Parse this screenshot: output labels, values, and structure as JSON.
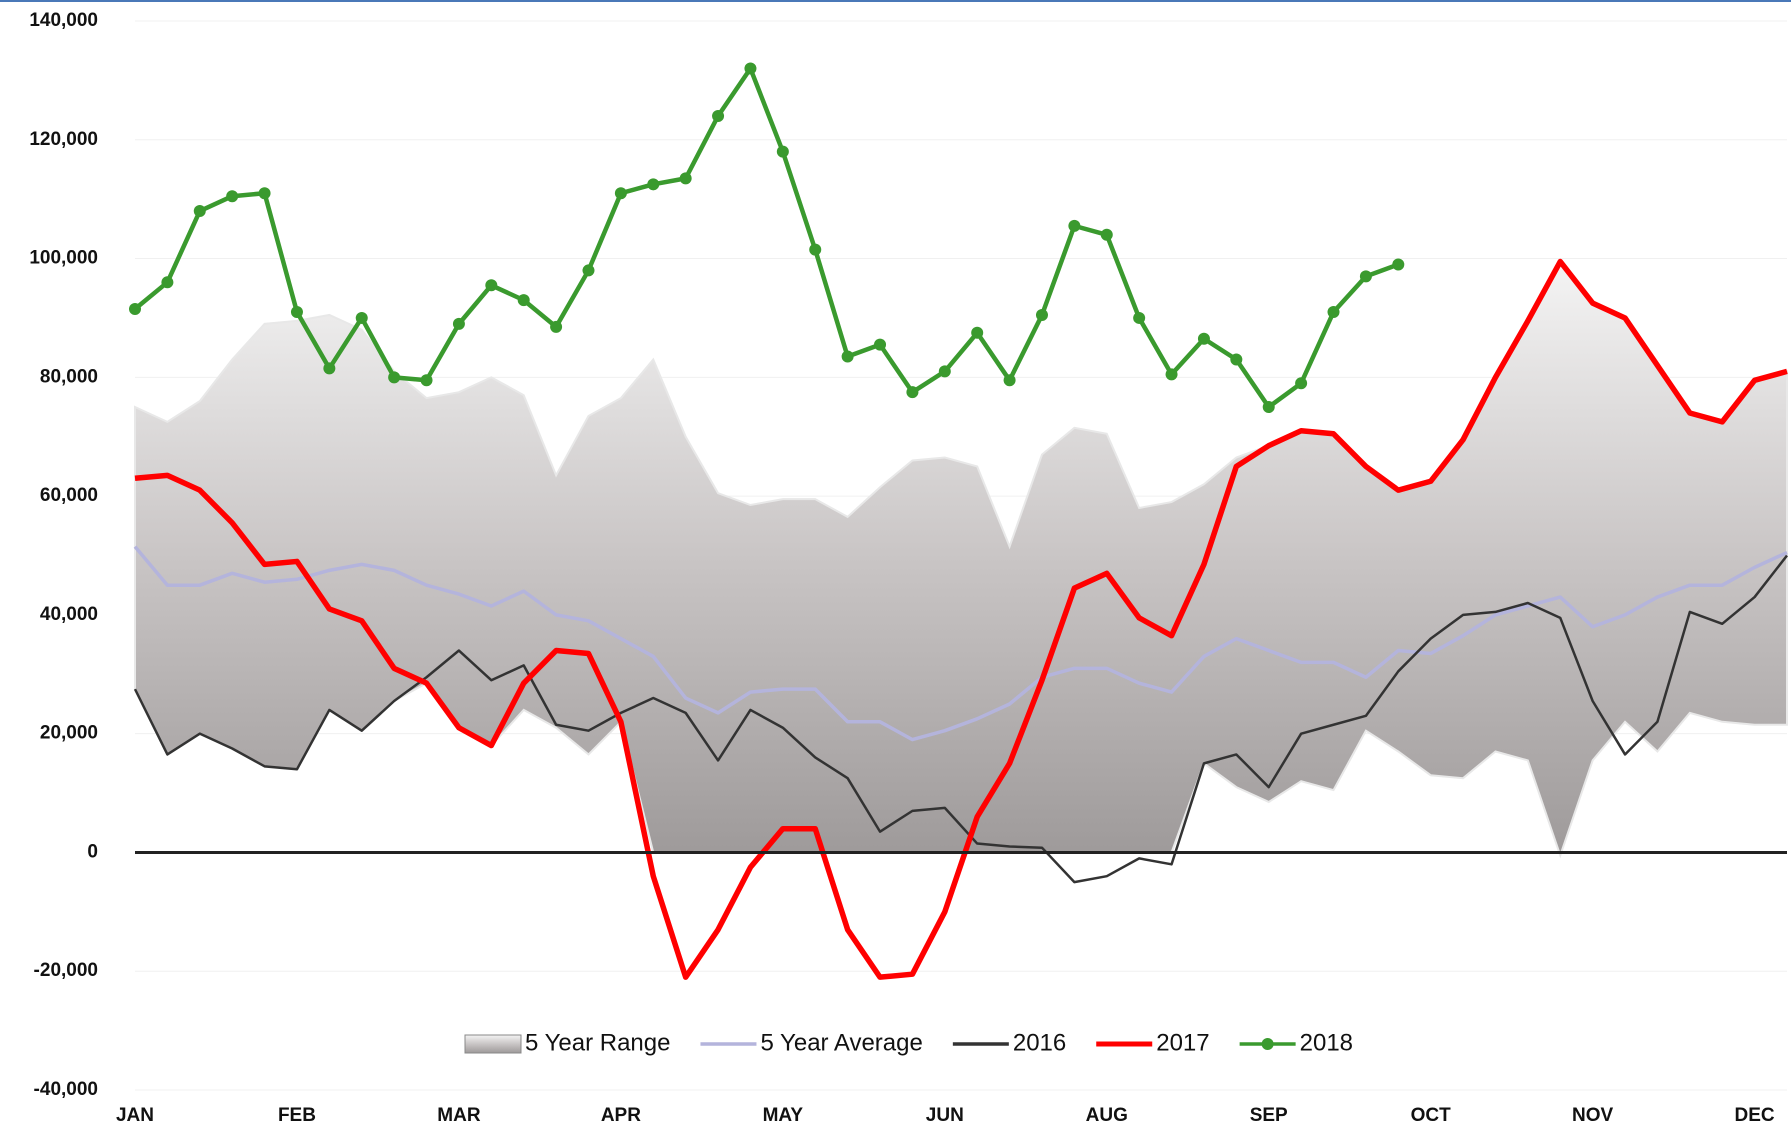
{
  "chart_data": {
    "type": "line",
    "categories": [
      "JAN",
      null,
      null,
      null,
      null,
      "FEB",
      null,
      null,
      null,
      null,
      "MAR",
      null,
      null,
      null,
      null,
      "APR",
      null,
      null,
      null,
      null,
      "MAY",
      null,
      null,
      null,
      null,
      "JUN",
      null,
      null,
      null,
      null,
      "AUG",
      null,
      null,
      null,
      null,
      "SEP",
      null,
      null,
      null,
      null,
      "OCT",
      null,
      null,
      null,
      null,
      "NOV",
      null,
      null,
      null,
      null,
      "DEC",
      null
    ],
    "ylim": [
      -40000,
      140000
    ],
    "yticks": [
      {
        "value": -40000,
        "label": "-40,000"
      },
      {
        "value": -20000,
        "label": "-20,000"
      },
      0,
      {
        "value": 20000,
        "label": "20,000"
      },
      {
        "value": 40000,
        "label": "40,000"
      },
      {
        "value": 60000,
        "label": "60,000"
      },
      {
        "value": 80000,
        "label": "80,000"
      },
      {
        "value": 100000,
        "label": "100,000"
      },
      {
        "value": 120000,
        "label": "120,000"
      },
      {
        "value": 140000,
        "label": "140,000"
      }
    ],
    "grid": true,
    "legend": "bottom",
    "series": [
      {
        "name": "5 Year Range",
        "color": "#b7b3b3",
        "high": [
          75000,
          72500,
          76000,
          83000,
          89000,
          89500,
          90500,
          88000,
          81000,
          76500,
          77500,
          80000,
          77000,
          63500,
          73500,
          76500,
          83000,
          70000,
          60500,
          58500,
          59500,
          59500,
          56500,
          61500,
          66000,
          66500,
          65000,
          51500,
          67000,
          71500,
          70500,
          58000,
          59000,
          62000,
          66500,
          68500,
          71000,
          70500,
          65000,
          61000,
          62500,
          69500,
          80000,
          89500,
          99500,
          92500,
          90000,
          82000,
          74000,
          72500,
          79500,
          81000
        ],
        "low": [
          27500,
          16500,
          20000,
          17500,
          14500,
          14000,
          24000,
          20500,
          25500,
          28500,
          21000,
          18000,
          24000,
          21000,
          16500,
          22000,
          0,
          0,
          0,
          0,
          0,
          0,
          0,
          0,
          0,
          0,
          0,
          0,
          0,
          0,
          0,
          0,
          0,
          15000,
          11000,
          8500,
          12000,
          10500,
          20500,
          17000,
          13000,
          12500,
          17000,
          15500,
          -500,
          15500,
          22000,
          17000,
          23500,
          22000,
          21500,
          21500
        ]
      },
      {
        "name": "5 Year Average",
        "color": "#b4b4dc",
        "values": [
          51500,
          45000,
          45000,
          47000,
          45500,
          46000,
          47500,
          48500,
          47500,
          45000,
          43500,
          41500,
          44000,
          40000,
          39000,
          36000,
          33000,
          26000,
          23500,
          27000,
          27500,
          27500,
          22000,
          22000,
          19000,
          20500,
          22500,
          25000,
          29500,
          31000,
          31000,
          28500,
          27000,
          33000,
          36000,
          34000,
          32000,
          32000,
          29500,
          34000,
          33500,
          36500,
          40000,
          41500,
          43000,
          38000,
          40000,
          43000,
          45000,
          45000,
          48000,
          50500
        ]
      },
      {
        "name": "2016",
        "color": "#333333",
        "values": [
          27500,
          16500,
          20000,
          17500,
          14500,
          14000,
          24000,
          20500,
          25500,
          29500,
          34000,
          29000,
          31500,
          21500,
          20500,
          23500,
          26000,
          23500,
          15500,
          24000,
          21000,
          16000,
          12500,
          3500,
          7000,
          7500,
          1500,
          1000,
          800,
          -5000,
          -4000,
          -1000,
          -2000,
          15000,
          16500,
          11000,
          20000,
          21500,
          23000,
          30500,
          36000,
          40000,
          40500,
          42000,
          39500,
          25500,
          16500,
          22000,
          40500,
          38500,
          43000,
          50000
        ]
      },
      {
        "name": "2017",
        "color": "#ff0000",
        "values": [
          63000,
          63500,
          61000,
          55500,
          48500,
          49000,
          41000,
          39000,
          31000,
          28500,
          21000,
          18000,
          28500,
          34000,
          33500,
          22000,
          -4000,
          -21000,
          -13000,
          -2500,
          4000,
          4000,
          -13000,
          -21000,
          -20500,
          -10000,
          6000,
          15000,
          29000,
          44500,
          47000,
          39500,
          36500,
          48500,
          65000,
          68500,
          71000,
          70500,
          65000,
          61000,
          62500,
          69500,
          80000,
          89500,
          99500,
          92500,
          90000,
          82000,
          74000,
          72500,
          79500,
          81000
        ]
      },
      {
        "name": "2018",
        "color": "#3a9a2e",
        "marker": true,
        "values": [
          91500,
          96000,
          108000,
          110500,
          111000,
          91000,
          81500,
          90000,
          80000,
          79500,
          89000,
          95500,
          93000,
          88500,
          98000,
          111000,
          112500,
          113500,
          124000,
          132000,
          118000,
          101500,
          83500,
          85500,
          77500,
          81000,
          87500,
          79500,
          90500,
          105500,
          104000,
          90000,
          80500,
          86500,
          83000,
          75000,
          79000,
          91000,
          97000,
          99000,
          null,
          null,
          null,
          null,
          null,
          null,
          null,
          null,
          null,
          null,
          null,
          null
        ]
      }
    ]
  }
}
